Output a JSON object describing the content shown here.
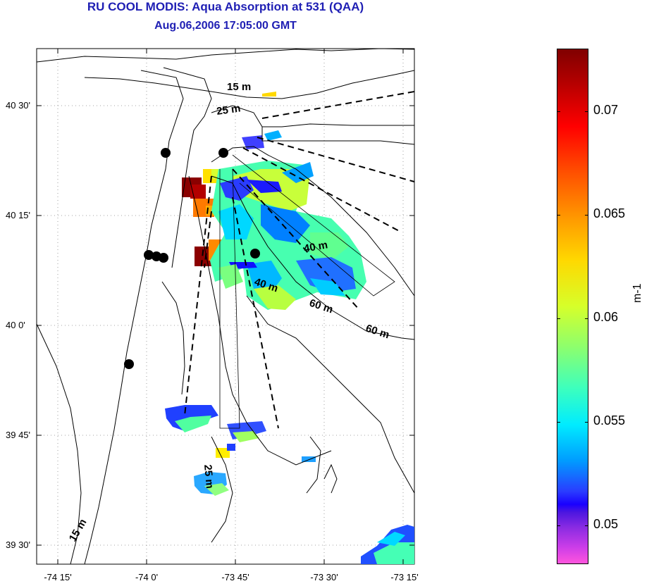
{
  "title": "RU COOL MODIS: Aqua Absorption at 531 (QAA)",
  "subtitle": "Aug.06,2006 17:05:00 GMT",
  "lat_labels": [
    "40 30'",
    "40 15'",
    "40 0'",
    "39 45'",
    "39 30'"
  ],
  "lon_labels": [
    "-74 15'",
    "-74 0'",
    "-73 45'",
    "-73 30'",
    "-73 15'"
  ],
  "depth_labels": [
    "15 m",
    "25 m",
    "40 m",
    "40 m",
    "60 m",
    "60 m",
    "25 m",
    "15 m"
  ],
  "colorbar": {
    "tick_labels": [
      "0.07",
      "0.065",
      "0.06",
      "0.055",
      "0.05"
    ],
    "unit": "m-1",
    "range": [
      0.048,
      0.073
    ],
    "colormap": "jet with magenta low end"
  },
  "stations_count": 7,
  "colors": {
    "title": "#1f1fb4",
    "station": "#000000"
  }
}
